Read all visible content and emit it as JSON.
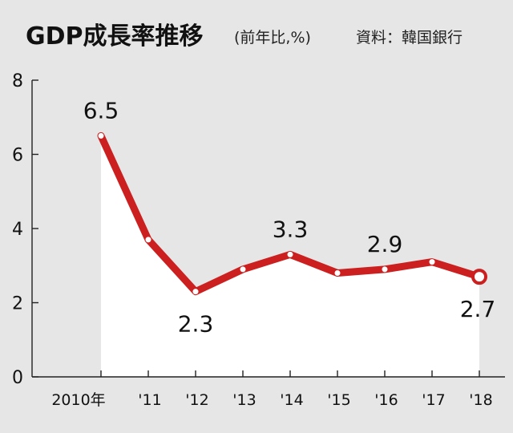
{
  "chart_data": {
    "type": "line",
    "title": "GDP成長率推移",
    "subtitle": "(前年比,%)",
    "source": "資料：韓国銀行",
    "categories": [
      "2010年",
      "'11",
      "'12",
      "'13",
      "'14",
      "'15",
      "'16",
      "'17",
      "'18"
    ],
    "series": [
      {
        "values": [
          6.5,
          3.7,
          2.3,
          2.9,
          3.3,
          2.8,
          2.9,
          3.1,
          2.7
        ]
      }
    ],
    "data_labels": [
      {
        "index": 0,
        "text": "6.5"
      },
      {
        "index": 2,
        "text": "2.3"
      },
      {
        "index": 4,
        "text": "3.3"
      },
      {
        "index": 6,
        "text": "2.9"
      },
      {
        "index": 8,
        "text": "2.7"
      }
    ],
    "yticks": [
      "0",
      "2",
      "4",
      "6",
      "8"
    ],
    "ylim": [
      0,
      8
    ],
    "grid": false,
    "line_color": "#cc1f1f",
    "fill_color": "#ffffff"
  }
}
